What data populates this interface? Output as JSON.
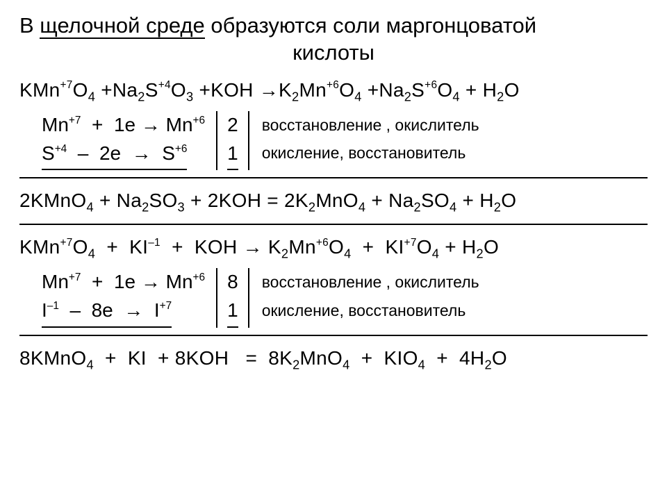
{
  "title_line1_pre": "В ",
  "title_underlined": "щелочной среде",
  "title_line1_post": " образуются соли маргонцоватой",
  "title_line2": "кислоты",
  "block1": {
    "eq": "KMn⁺⁷O₄ +Na₂S⁺⁴O₃ +KOH →K₂Mn⁺⁶O₄ +Na₂S⁺⁶O₄ + H₂O",
    "half1_lhs": "Mn⁺⁷   +   1e → Mn⁺⁶",
    "half2_lhs": "S⁺⁴   –   2e   →   S⁺⁶",
    "mult1": "2",
    "mult2": "1",
    "note1": "восстановление , окислитель",
    "note2": "окисление, восстановитель",
    "balanced": "2KMnO₄ + Na₂SO₃ + 2KOH = 2K₂MnO₄ + Na₂SO₄ + H₂O"
  },
  "block2": {
    "eq": "KMn⁺⁷O₄  +  KI⁻¹  +  KOH → K₂Mn⁺⁶O₄  +  KI⁺⁷O₄ + H₂O",
    "half1_lhs": "Mn⁺⁷   +   1e → Mn⁺⁶",
    "half2_lhs": "I⁻¹   –   8e   →   I⁺⁷",
    "mult1": "8",
    "mult2": "1",
    "note1": "восстановление , окислитель",
    "note2": "окисление, восстановитель",
    "balanced": "8KMnO₄  +  KI  + 8KOH   =  8K₂MnO₄  +  KIO₄  +  4H₂O"
  },
  "style": {
    "colors": {
      "text": "#000000",
      "bg": "#ffffff",
      "rule": "#000000"
    },
    "fontsizes": {
      "title": 31,
      "eq": 28,
      "note": 23
    },
    "underline_width": 2,
    "rule_width": 2
  }
}
